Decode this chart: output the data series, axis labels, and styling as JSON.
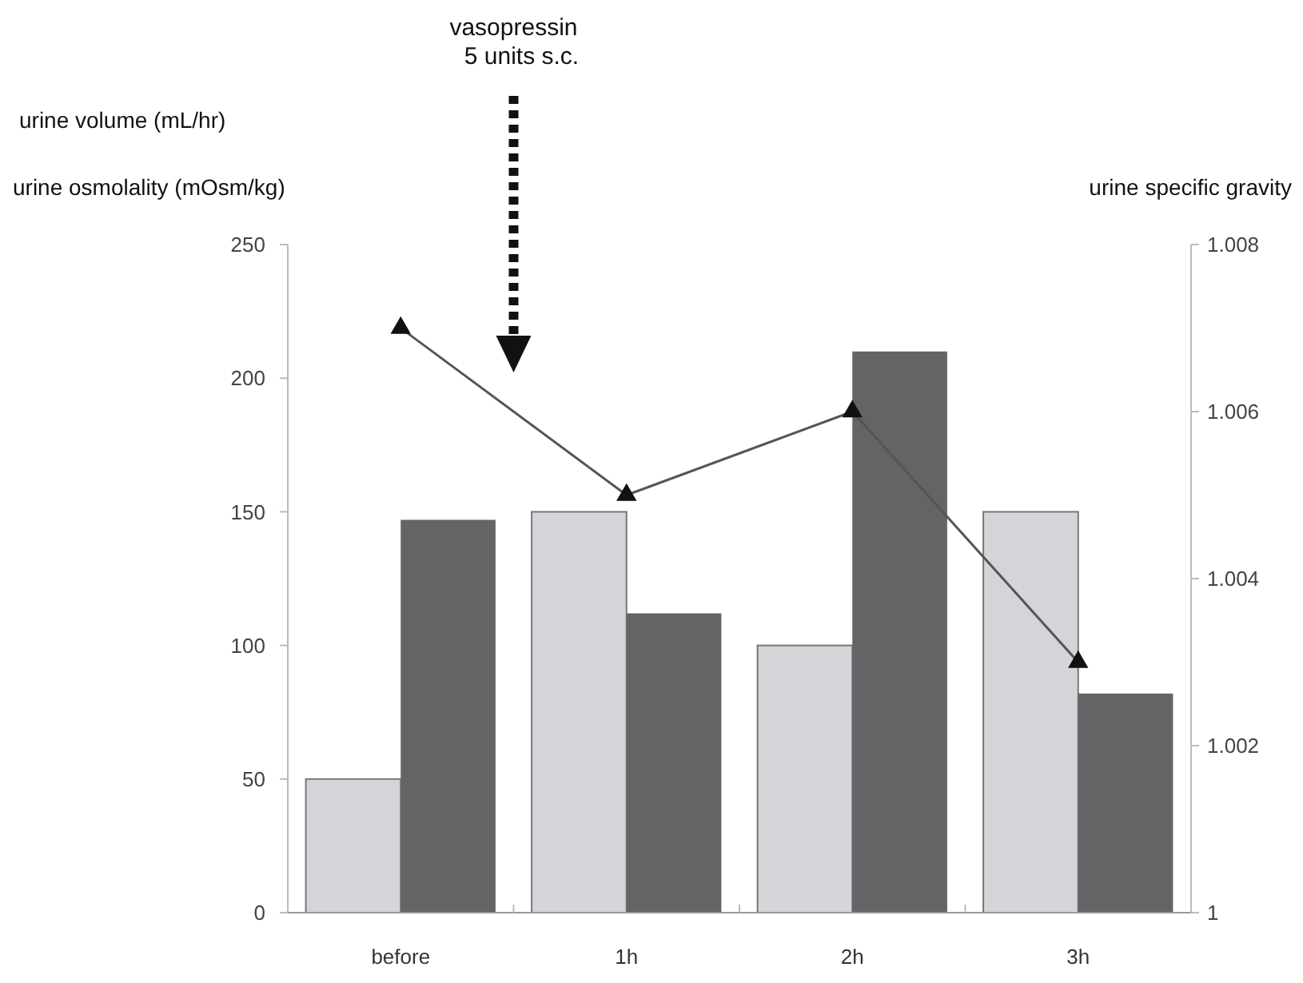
{
  "chart_data": {
    "type": "bar",
    "ylabel": "urine volume (mL/hr)",
    "y2label": "urine specific gravity",
    "annotations": [
      "urine osmolality (mOsm/kg)",
      "vasopressin\n5 units s.c."
    ],
    "categories": [
      "before",
      "1h",
      "2h",
      "3h"
    ],
    "series": [
      {
        "color": "#d3d5d8",
        "values": [
          50,
          150,
          100,
          150
        ]
      },
      {
        "color": "#626466",
        "values": [
          147,
          112,
          210,
          82
        ]
      },
      {
        "type": "line",
        "axis": "y2",
        "color": "#555555",
        "marker": "triangle",
        "values": [
          1.007,
          1.005,
          1.006,
          1.003
        ]
      }
    ],
    "ylim": [
      0,
      250
    ],
    "yticks": [
      0,
      50,
      100,
      150,
      200,
      250
    ],
    "y2lim": [
      1,
      1.008
    ],
    "y2ticks": [
      1,
      1.002,
      1.004,
      1.006,
      1.008
    ],
    "grid": false
  }
}
